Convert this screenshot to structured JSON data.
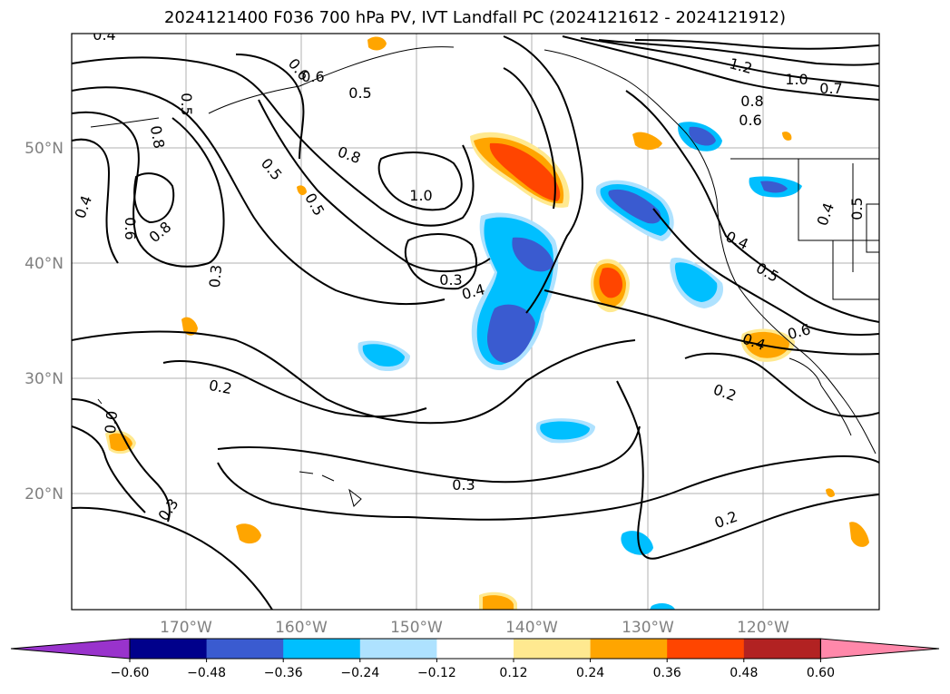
{
  "title": "2024121400 F036 700 hPa PV, IVT Landfall PC (2024121612 - 2024121912)",
  "lat_labels": [
    "50°N",
    "40°N",
    "30°N",
    "20°N"
  ],
  "lon_labels": [
    "170°W",
    "160°W",
    "150°W",
    "140°W",
    "130°W",
    "120°W"
  ],
  "colorbar": {
    "colors": [
      "#9933cc",
      "#00008b",
      "#3a5bd0",
      "#00bfff",
      "#aee2ff",
      "#ffffff",
      "#ffe990",
      "#ffa500",
      "#ff4500",
      "#b22222",
      "#ff88aa"
    ],
    "tick_labels": [
      "−0.60",
      "−0.48",
      "−0.36",
      "−0.24",
      "−0.12",
      "0.12",
      "0.24",
      "0.36",
      "0.48",
      "0.60"
    ]
  },
  "contour_labels": [
    "0.4",
    "0.6",
    "0.6",
    "0.5",
    "1.2",
    "1.0",
    "0.7",
    "0.8",
    "0.6",
    "0.5",
    "0.8",
    "0.8",
    "0.5",
    "0.4",
    "0.6",
    "0.8",
    "0.3",
    "0.5",
    "1.0",
    "0.3",
    "0.4",
    "0.4",
    "0.5",
    "0.6",
    "0.4",
    "0.5",
    "0.4",
    "0.2",
    "0.2",
    "0.3",
    "0.0",
    "0.3",
    "0.2",
    "0.3"
  ]
}
